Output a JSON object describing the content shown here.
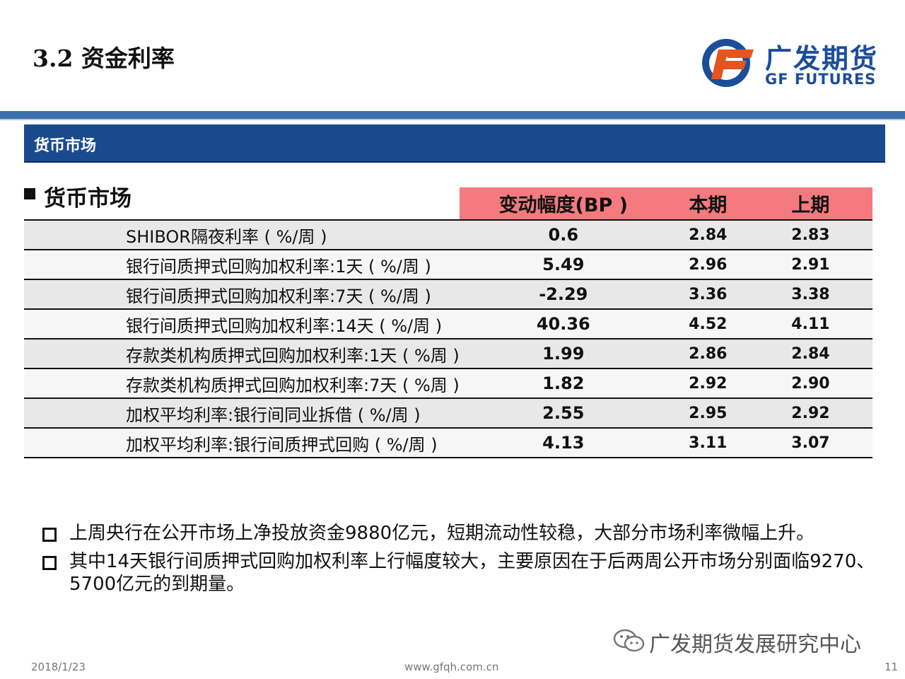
{
  "slide": {
    "title": "3.2 资金利率",
    "logo": {
      "cn": "广发期货",
      "en": "GF FUTURES"
    },
    "section_bar": "货币市场",
    "subheading": "货币市场"
  },
  "table": {
    "headers": [
      "",
      "变动幅度(BP )",
      "本期",
      "上期"
    ],
    "rows": [
      [
        "SHIBOR隔夜利率 ( %/周 )",
        "0.6",
        "2.84",
        "2.83"
      ],
      [
        "银行间质押式回购加权利率:1天 ( %/周 )",
        "5.49",
        "2.96",
        "2.91"
      ],
      [
        "银行间质押式回购加权利率:7天 ( %/周 )",
        "-2.29",
        "3.36",
        "3.38"
      ],
      [
        "银行间质押式回购加权利率:14天 ( %/周 )",
        "40.36",
        "4.52",
        "4.11"
      ],
      [
        "存款类机构质押式回购加权利率:1天 ( %周 )",
        "1.99",
        "2.86",
        "2.84"
      ],
      [
        "存款类机构质押式回购加权利率:7天 ( %周 )",
        "1.82",
        "2.92",
        "2.90"
      ],
      [
        "加权平均利率:银行间同业拆借 ( %/周 )",
        "2.55",
        "2.95",
        "2.92"
      ],
      [
        "加权平均利率:银行间质押式回购 ( %/周 )",
        "4.13",
        "3.11",
        "3.07"
      ]
    ]
  },
  "bullets": [
    "上周央行在公开市场上净投放资金9880亿元，短期流动性较稳，大部分市场利率微幅上升。",
    "其中14天银行间质押式回购加权利率上行幅度较大，主要原因在于后两周公开市场分别面临9270、5700亿元的到期量。"
  ],
  "watermark": "广发期货发展研究中心",
  "footer": {
    "date": "2018/1/23",
    "url": "www.gfqh.com.cn",
    "page": "11"
  },
  "colors": {
    "brand_blue": "#1a4a8e",
    "header_pink": "#f47a7f",
    "logo_orange": "#e8541e"
  }
}
